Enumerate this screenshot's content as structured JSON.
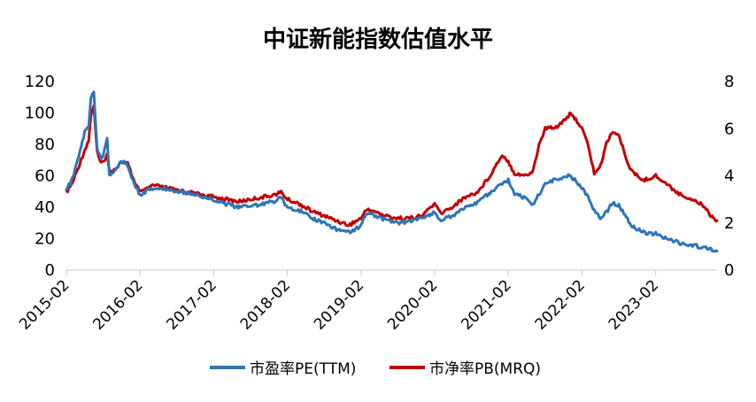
{
  "chart_data": {
    "type": "line",
    "title": "中证新能指数估值水平",
    "x_tick_labels": [
      "2015-02",
      "2016-02",
      "2017-02",
      "2018-02",
      "2019-02",
      "2020-02",
      "2021-02",
      "2022-02",
      "2023-02"
    ],
    "x_range": [
      "2015-02",
      "2023-12"
    ],
    "y_left": {
      "ylim": [
        0,
        120
      ],
      "ticks": [
        "0",
        "20",
        "40",
        "60",
        "80",
        "100",
        "120"
      ]
    },
    "y_right": {
      "ylim": [
        0,
        8
      ],
      "ticks": [
        "0",
        "2",
        "4",
        "6",
        "8"
      ]
    },
    "grid": false,
    "legend_position": "bottom",
    "series": [
      {
        "name": "市盈率PE(TTM)",
        "axis": "left",
        "color": "#2e75b6",
        "points": [
          [
            "2015-02",
            51
          ],
          [
            "2015-03",
            58
          ],
          [
            "2015-04",
            72
          ],
          [
            "2015-05",
            88
          ],
          [
            "2015-05-20",
            91
          ],
          [
            "2015-06",
            110
          ],
          [
            "2015-06-15",
            113
          ],
          [
            "2015-07",
            78
          ],
          [
            "2015-07-20",
            70
          ],
          [
            "2015-08",
            73
          ],
          [
            "2015-08-20",
            84
          ],
          [
            "2015-09",
            60
          ],
          [
            "2015-10",
            64
          ],
          [
            "2015-11",
            70
          ],
          [
            "2015-12",
            66
          ],
          [
            "2016-01",
            55
          ],
          [
            "2016-02",
            48
          ],
          [
            "2016-03",
            50
          ],
          [
            "2016-04",
            52
          ],
          [
            "2016-06",
            52
          ],
          [
            "2016-08",
            50
          ],
          [
            "2016-10",
            49
          ],
          [
            "2016-12",
            47
          ],
          [
            "2017-02",
            45
          ],
          [
            "2017-04",
            42
          ],
          [
            "2017-06",
            40
          ],
          [
            "2017-08",
            41
          ],
          [
            "2017-10",
            42
          ],
          [
            "2017-12",
            44
          ],
          [
            "2018-01",
            46
          ],
          [
            "2018-02",
            40
          ],
          [
            "2018-04",
            38
          ],
          [
            "2018-06",
            33
          ],
          [
            "2018-08",
            30
          ],
          [
            "2018-10",
            26
          ],
          [
            "2018-12",
            24
          ],
          [
            "2019-02",
            28
          ],
          [
            "2019-03",
            37
          ],
          [
            "2019-04",
            35
          ],
          [
            "2019-06",
            32
          ],
          [
            "2019-08",
            30
          ],
          [
            "2019-10",
            31
          ],
          [
            "2019-12",
            33
          ],
          [
            "2020-01",
            35
          ],
          [
            "2020-02",
            37
          ],
          [
            "2020-03",
            31
          ],
          [
            "2020-05",
            35
          ],
          [
            "2020-07",
            40
          ],
          [
            "2020-09",
            43
          ],
          [
            "2020-11",
            49
          ],
          [
            "2021-01",
            55
          ],
          [
            "2021-02",
            57
          ],
          [
            "2021-03",
            49
          ],
          [
            "2021-05",
            45
          ],
          [
            "2021-06",
            42
          ],
          [
            "2021-07",
            48
          ],
          [
            "2021-08",
            55
          ],
          [
            "2021-10",
            58
          ],
          [
            "2021-12",
            60
          ],
          [
            "2022-01",
            57
          ],
          [
            "2022-02",
            52
          ],
          [
            "2022-03",
            47
          ],
          [
            "2022-04",
            38
          ],
          [
            "2022-05",
            33
          ],
          [
            "2022-06",
            37
          ],
          [
            "2022-07",
            43
          ],
          [
            "2022-08",
            41
          ],
          [
            "2022-09",
            35
          ],
          [
            "2022-10",
            28
          ],
          [
            "2022-12",
            24
          ],
          [
            "2023-02",
            23
          ],
          [
            "2023-04",
            20
          ],
          [
            "2023-06",
            17
          ],
          [
            "2023-08",
            16
          ],
          [
            "2023-10",
            14
          ],
          [
            "2023-11",
            13
          ],
          [
            "2023-12",
            12
          ]
        ]
      },
      {
        "name": "市净率PB(MRQ)",
        "axis": "right",
        "color": "#c00000",
        "points": [
          [
            "2015-02",
            3.3
          ],
          [
            "2015-03",
            3.7
          ],
          [
            "2015-04",
            4.4
          ],
          [
            "2015-05",
            5.1
          ],
          [
            "2015-05-20",
            5.5
          ],
          [
            "2015-06",
            6.6
          ],
          [
            "2015-06-15",
            7.0
          ],
          [
            "2015-07",
            5.0
          ],
          [
            "2015-07-20",
            4.5
          ],
          [
            "2015-08",
            4.6
          ],
          [
            "2015-08-20",
            4.9
          ],
          [
            "2015-09",
            4.2
          ],
          [
            "2015-10",
            4.3
          ],
          [
            "2015-11",
            4.6
          ],
          [
            "2015-12",
            4.5
          ],
          [
            "2016-01",
            3.8
          ],
          [
            "2016-02",
            3.3
          ],
          [
            "2016-03",
            3.4
          ],
          [
            "2016-04",
            3.6
          ],
          [
            "2016-06",
            3.5
          ],
          [
            "2016-08",
            3.4
          ],
          [
            "2016-10",
            3.3
          ],
          [
            "2016-12",
            3.2
          ],
          [
            "2017-02",
            3.1
          ],
          [
            "2017-04",
            3.0
          ],
          [
            "2017-06",
            2.9
          ],
          [
            "2017-08",
            3.0
          ],
          [
            "2017-10",
            3.1
          ],
          [
            "2017-12",
            3.2
          ],
          [
            "2018-01",
            3.3
          ],
          [
            "2018-02",
            3.0
          ],
          [
            "2018-04",
            2.8
          ],
          [
            "2018-06",
            2.5
          ],
          [
            "2018-08",
            2.3
          ],
          [
            "2018-10",
            2.1
          ],
          [
            "2018-12",
            1.9
          ],
          [
            "2019-02",
            2.2
          ],
          [
            "2019-03",
            2.6
          ],
          [
            "2019-04",
            2.5
          ],
          [
            "2019-06",
            2.3
          ],
          [
            "2019-08",
            2.2
          ],
          [
            "2019-10",
            2.2
          ],
          [
            "2019-12",
            2.3
          ],
          [
            "2020-01",
            2.6
          ],
          [
            "2020-02",
            2.8
          ],
          [
            "2020-03",
            2.4
          ],
          [
            "2020-05",
            2.7
          ],
          [
            "2020-07",
            3.1
          ],
          [
            "2020-09",
            3.3
          ],
          [
            "2020-11",
            4.0
          ],
          [
            "2021-01",
            4.9
          ],
          [
            "2021-02",
            4.6
          ],
          [
            "2021-03",
            4.1
          ],
          [
            "2021-05",
            4.0
          ],
          [
            "2021-06",
            4.2
          ],
          [
            "2021-07",
            5.3
          ],
          [
            "2021-08",
            6.0
          ],
          [
            "2021-10",
            6.1
          ],
          [
            "2021-12",
            6.6
          ],
          [
            "2022-01",
            6.4
          ],
          [
            "2022-02",
            6.0
          ],
          [
            "2022-03",
            5.3
          ],
          [
            "2022-04",
            4.1
          ],
          [
            "2022-05",
            4.4
          ],
          [
            "2022-06",
            5.4
          ],
          [
            "2022-07",
            5.9
          ],
          [
            "2022-08",
            5.7
          ],
          [
            "2022-09",
            4.9
          ],
          [
            "2022-10",
            4.2
          ],
          [
            "2022-12",
            3.8
          ],
          [
            "2023-02",
            4.0
          ],
          [
            "2023-04",
            3.6
          ],
          [
            "2023-06",
            3.2
          ],
          [
            "2023-08",
            3.0
          ],
          [
            "2023-10",
            2.7
          ],
          [
            "2023-11",
            2.3
          ],
          [
            "2023-12",
            2.1
          ]
        ]
      }
    ]
  }
}
